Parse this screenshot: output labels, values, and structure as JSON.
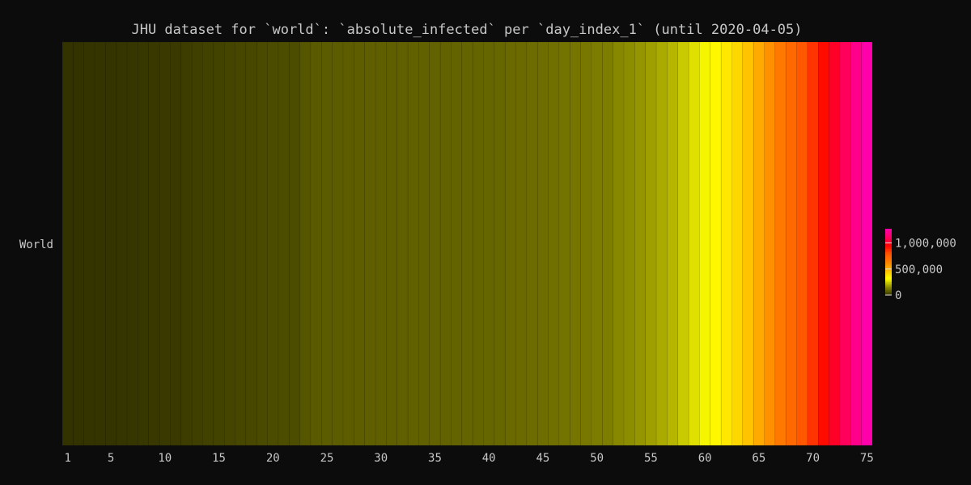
{
  "chart_data": {
    "type": "heatmap",
    "title": "JHU dataset for `world`: `absolute_infected` per `day_index_1` (until 2020-04-05)",
    "xlabel": "",
    "ylabel": "",
    "rows": [
      "World"
    ],
    "x": [
      1,
      2,
      3,
      4,
      5,
      6,
      7,
      8,
      9,
      10,
      11,
      12,
      13,
      14,
      15,
      16,
      17,
      18,
      19,
      20,
      21,
      22,
      23,
      24,
      25,
      26,
      27,
      28,
      29,
      30,
      31,
      32,
      33,
      34,
      35,
      36,
      37,
      38,
      39,
      40,
      41,
      42,
      43,
      44,
      45,
      46,
      47,
      48,
      49,
      50,
      51,
      52,
      53,
      54,
      55,
      56,
      57,
      58,
      59,
      60,
      61,
      62,
      63,
      64,
      65,
      66,
      67,
      68,
      69,
      70,
      71,
      72,
      73,
      74,
      75
    ],
    "x_ticks": [
      1,
      5,
      10,
      15,
      20,
      25,
      30,
      35,
      40,
      45,
      50,
      55,
      60,
      65,
      70,
      75
    ],
    "values": [
      [
        555,
        654,
        941,
        1434,
        2118,
        2927,
        5578,
        6166,
        8234,
        9927,
        12038,
        16787,
        19881,
        23892,
        27635,
        30794,
        34391,
        37120,
        40150,
        42762,
        44802,
        45221,
        60368,
        66885,
        69030,
        71224,
        73258,
        75136,
        75639,
        76197,
        76819,
        78572,
        78958,
        79561,
        80406,
        81388,
        82746,
        84112,
        86011,
        88369,
        90306,
        92840,
        95120,
        97886,
        101801,
        105847,
        109821,
        113590,
        118620,
        125875,
        128352,
        145205,
        156101,
        167454,
        181574,
        197102,
        214821,
        242570,
        272208,
        304507,
        336953,
        378235,
        418045,
        467653,
        529591,
        593291,
        660706,
        720117,
        782365,
        857487,
        932605,
        1013466,
        1095917,
        1197405,
        1272115
      ]
    ],
    "colorscale": {
      "min": 0,
      "max": 1272115,
      "ticks": [
        0,
        500000,
        1000000
      ],
      "tick_labels": [
        "0",
        "500,000",
        "1,000,000"
      ],
      "colors": [
        "#333300",
        "#8f8f00",
        "#ffff00",
        "#ffbf00",
        "#ff8000",
        "#ff5500",
        "#ff0000",
        "#ff0066",
        "#ff00aa"
      ]
    },
    "legend_position": "right",
    "grid": false
  }
}
